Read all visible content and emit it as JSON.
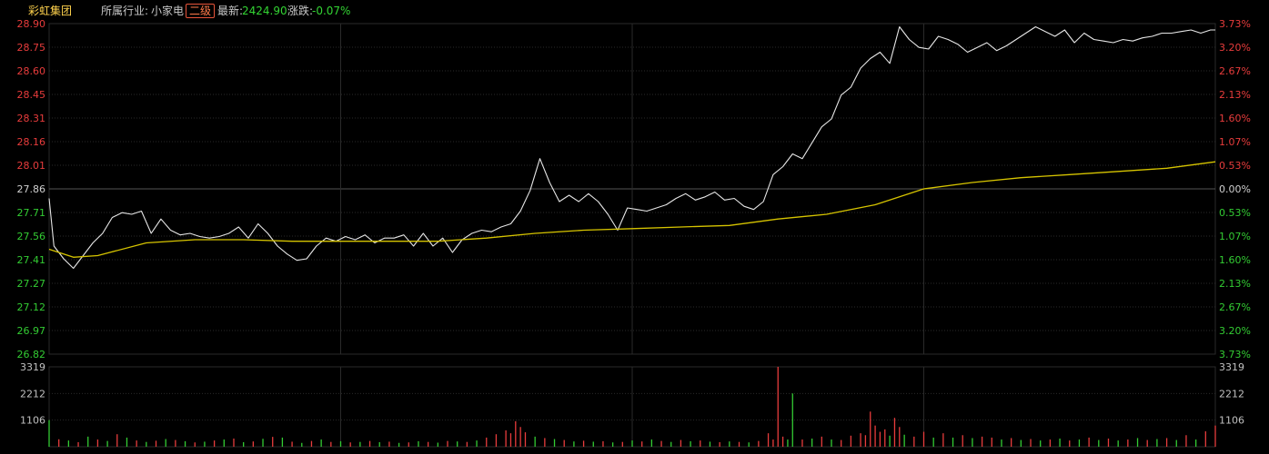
{
  "header": {
    "stock_name": "彩虹集团",
    "industry_label": "所属行业:",
    "industry_value": "小家电",
    "tag": "二级",
    "latest_label": "最新:",
    "latest_value": "2424.90",
    "change_label": "涨跌:",
    "change_value": "-0.07%"
  },
  "colors": {
    "background": "#000000",
    "price_line": "#e6e6e6",
    "avg_line": "#d6c400",
    "up": "#e83c3c",
    "down": "#33cc33",
    "grid": "#2a2a2a",
    "base_line": "#555555"
  },
  "chart_data": {
    "type": "line",
    "title": "",
    "price_axis": {
      "left_ticks": [
        "28.90",
        "28.75",
        "28.60",
        "28.45",
        "28.31",
        "28.16",
        "28.01",
        "27.86",
        "27.71",
        "27.56",
        "27.41",
        "27.27",
        "27.12",
        "26.97",
        "26.82"
      ],
      "right_ticks": [
        "3.73%",
        "3.20%",
        "2.67%",
        "2.13%",
        "1.60%",
        "1.07%",
        "0.53%",
        "0.00%",
        "0.53%",
        "1.07%",
        "1.60%",
        "2.13%",
        "2.67%",
        "3.20%",
        "3.73%"
      ],
      "ylim": [
        26.82,
        28.9
      ],
      "base": 27.86
    },
    "volume_axis": {
      "left_ticks": [
        "3319",
        "2212",
        "1106"
      ],
      "right_ticks": [
        "3319",
        "2212",
        "1106"
      ],
      "ylim": [
        0,
        3319
      ]
    },
    "x_range": [
      0,
      240
    ],
    "series": [
      {
        "key": "price",
        "x": [
          0,
          1,
          3,
          5,
          7,
          9,
          11,
          13,
          15,
          17,
          19,
          21,
          23,
          25,
          27,
          29,
          31,
          33,
          35,
          37,
          39,
          41,
          43,
          45,
          47,
          49,
          51,
          53,
          55,
          57,
          59,
          61,
          63,
          65,
          67,
          69,
          71,
          73,
          75,
          77,
          79,
          81,
          83,
          85,
          87,
          89,
          91,
          93,
          95,
          97,
          99,
          101,
          103,
          105,
          107,
          109,
          111,
          113,
          115,
          117,
          119,
          121,
          123,
          125,
          127,
          129,
          131,
          133,
          135,
          137,
          139,
          141,
          143,
          145,
          147,
          149,
          151,
          153,
          155,
          157,
          159,
          161,
          163,
          165,
          167,
          169,
          171,
          173,
          175,
          177,
          179,
          181,
          183,
          185,
          187,
          189,
          191,
          193,
          195,
          197,
          199,
          201,
          203,
          205,
          207,
          209,
          211,
          213,
          215,
          217,
          219,
          221,
          223,
          225,
          227,
          229,
          231,
          233,
          235,
          237,
          239,
          240
        ],
        "values": [
          27.8,
          27.5,
          27.42,
          27.36,
          27.44,
          27.52,
          27.58,
          27.68,
          27.71,
          27.7,
          27.72,
          27.58,
          27.67,
          27.6,
          27.57,
          27.58,
          27.56,
          27.55,
          27.56,
          27.58,
          27.62,
          27.55,
          27.64,
          27.58,
          27.5,
          27.45,
          27.41,
          27.42,
          27.5,
          27.55,
          27.53,
          27.56,
          27.54,
          27.57,
          27.52,
          27.55,
          27.55,
          27.57,
          27.5,
          27.58,
          27.5,
          27.55,
          27.46,
          27.54,
          27.58,
          27.6,
          27.59,
          27.62,
          27.64,
          27.72,
          27.85,
          28.05,
          27.9,
          27.78,
          27.82,
          27.78,
          27.83,
          27.78,
          27.7,
          27.6,
          27.74,
          27.73,
          27.72,
          27.74,
          27.76,
          27.8,
          27.83,
          27.79,
          27.81,
          27.84,
          27.79,
          27.8,
          27.75,
          27.73,
          27.78,
          27.95,
          28.0,
          28.08,
          28.05,
          28.15,
          28.25,
          28.3,
          28.45,
          28.5,
          28.62,
          28.68,
          28.72,
          28.65,
          28.88,
          28.8,
          28.75,
          28.74,
          28.82,
          28.8,
          28.77,
          28.72,
          28.75,
          28.78,
          28.73,
          28.76,
          28.8,
          28.84,
          28.88,
          28.85,
          28.82,
          28.86,
          28.78,
          28.84,
          28.8,
          28.79,
          28.78,
          28.8,
          28.79,
          28.81,
          28.82,
          28.84,
          28.84,
          28.85,
          28.86,
          28.84,
          28.86,
          28.86
        ],
        "color": "#e6e6e6"
      },
      {
        "key": "average",
        "x": [
          0,
          1,
          3,
          5,
          10,
          20,
          30,
          40,
          50,
          60,
          70,
          80,
          90,
          100,
          110,
          120,
          130,
          140,
          150,
          160,
          170,
          180,
          190,
          200,
          210,
          220,
          230,
          240
        ],
        "values": [
          27.48,
          27.47,
          27.45,
          27.43,
          27.44,
          27.52,
          27.54,
          27.54,
          27.53,
          27.53,
          27.53,
          27.53,
          27.55,
          27.58,
          27.6,
          27.61,
          27.62,
          27.63,
          27.67,
          27.7,
          27.76,
          27.86,
          27.9,
          27.93,
          27.95,
          27.97,
          27.99,
          28.03
        ],
        "color": "#d6c400"
      }
    ],
    "volume": [
      [
        0,
        1106,
        "down"
      ],
      [
        2,
        310,
        "up"
      ],
      [
        4,
        260,
        "down"
      ],
      [
        6,
        190,
        "up"
      ],
      [
        8,
        420,
        "down"
      ],
      [
        10,
        300,
        "up"
      ],
      [
        12,
        240,
        "down"
      ],
      [
        14,
        520,
        "up"
      ],
      [
        16,
        380,
        "down"
      ],
      [
        18,
        260,
        "up"
      ],
      [
        20,
        200,
        "down"
      ],
      [
        22,
        250,
        "up"
      ],
      [
        24,
        320,
        "down"
      ],
      [
        26,
        280,
        "up"
      ],
      [
        28,
        230,
        "down"
      ],
      [
        30,
        180,
        "up"
      ],
      [
        32,
        210,
        "down"
      ],
      [
        34,
        260,
        "up"
      ],
      [
        36,
        300,
        "down"
      ],
      [
        38,
        340,
        "up"
      ],
      [
        40,
        190,
        "down"
      ],
      [
        42,
        220,
        "up"
      ],
      [
        44,
        330,
        "down"
      ],
      [
        46,
        410,
        "up"
      ],
      [
        48,
        380,
        "down"
      ],
      [
        50,
        210,
        "up"
      ],
      [
        52,
        160,
        "down"
      ],
      [
        54,
        240,
        "up"
      ],
      [
        56,
        300,
        "down"
      ],
      [
        58,
        200,
        "up"
      ],
      [
        60,
        230,
        "down"
      ],
      [
        62,
        180,
        "up"
      ],
      [
        64,
        200,
        "down"
      ],
      [
        66,
        240,
        "up"
      ],
      [
        68,
        190,
        "down"
      ],
      [
        70,
        210,
        "up"
      ],
      [
        72,
        160,
        "down"
      ],
      [
        74,
        180,
        "up"
      ],
      [
        76,
        230,
        "down"
      ],
      [
        78,
        200,
        "up"
      ],
      [
        80,
        170,
        "down"
      ],
      [
        82,
        240,
        "up"
      ],
      [
        84,
        220,
        "down"
      ],
      [
        86,
        200,
        "up"
      ],
      [
        88,
        260,
        "down"
      ],
      [
        90,
        380,
        "up"
      ],
      [
        92,
        520,
        "up"
      ],
      [
        94,
        680,
        "up"
      ],
      [
        95,
        560,
        "up"
      ],
      [
        96,
        1060,
        "up"
      ],
      [
        97,
        820,
        "up"
      ],
      [
        98,
        600,
        "up"
      ],
      [
        100,
        420,
        "down"
      ],
      [
        102,
        360,
        "up"
      ],
      [
        104,
        320,
        "down"
      ],
      [
        106,
        280,
        "up"
      ],
      [
        108,
        220,
        "down"
      ],
      [
        110,
        250,
        "up"
      ],
      [
        112,
        210,
        "down"
      ],
      [
        114,
        230,
        "up"
      ],
      [
        116,
        180,
        "down"
      ],
      [
        118,
        200,
        "up"
      ],
      [
        120,
        260,
        "down"
      ],
      [
        122,
        220,
        "up"
      ],
      [
        124,
        300,
        "down"
      ],
      [
        126,
        240,
        "up"
      ],
      [
        128,
        200,
        "down"
      ],
      [
        130,
        280,
        "up"
      ],
      [
        132,
        230,
        "down"
      ],
      [
        134,
        260,
        "up"
      ],
      [
        136,
        210,
        "down"
      ],
      [
        138,
        190,
        "up"
      ],
      [
        140,
        220,
        "down"
      ],
      [
        142,
        200,
        "up"
      ],
      [
        144,
        180,
        "down"
      ],
      [
        146,
        240,
        "up"
      ],
      [
        148,
        560,
        "up"
      ],
      [
        149,
        300,
        "up"
      ],
      [
        150,
        3319,
        "up"
      ],
      [
        151,
        420,
        "up"
      ],
      [
        152,
        300,
        "down"
      ],
      [
        153,
        2212,
        "down"
      ],
      [
        155,
        300,
        "up"
      ],
      [
        157,
        340,
        "down"
      ],
      [
        159,
        420,
        "up"
      ],
      [
        161,
        300,
        "down"
      ],
      [
        163,
        280,
        "up"
      ],
      [
        165,
        460,
        "up"
      ],
      [
        167,
        560,
        "up"
      ],
      [
        168,
        480,
        "up"
      ],
      [
        169,
        1460,
        "up"
      ],
      [
        170,
        880,
        "up"
      ],
      [
        171,
        620,
        "up"
      ],
      [
        172,
        720,
        "up"
      ],
      [
        173,
        460,
        "down"
      ],
      [
        174,
        1200,
        "up"
      ],
      [
        175,
        820,
        "up"
      ],
      [
        176,
        500,
        "down"
      ],
      [
        178,
        420,
        "up"
      ],
      [
        180,
        620,
        "up"
      ],
      [
        182,
        380,
        "down"
      ],
      [
        184,
        560,
        "up"
      ],
      [
        186,
        380,
        "down"
      ],
      [
        188,
        480,
        "up"
      ],
      [
        190,
        360,
        "down"
      ],
      [
        192,
        420,
        "up"
      ],
      [
        194,
        380,
        "up"
      ],
      [
        196,
        300,
        "down"
      ],
      [
        198,
        360,
        "up"
      ],
      [
        200,
        280,
        "down"
      ],
      [
        202,
        320,
        "up"
      ],
      [
        204,
        260,
        "down"
      ],
      [
        206,
        300,
        "up"
      ],
      [
        208,
        340,
        "down"
      ],
      [
        210,
        260,
        "up"
      ],
      [
        212,
        300,
        "down"
      ],
      [
        214,
        380,
        "up"
      ],
      [
        216,
        280,
        "down"
      ],
      [
        218,
        340,
        "up"
      ],
      [
        220,
        260,
        "down"
      ],
      [
        222,
        300,
        "up"
      ],
      [
        224,
        360,
        "down"
      ],
      [
        226,
        280,
        "up"
      ],
      [
        228,
        320,
        "down"
      ],
      [
        230,
        360,
        "up"
      ],
      [
        232,
        280,
        "down"
      ],
      [
        234,
        480,
        "up"
      ],
      [
        236,
        300,
        "down"
      ],
      [
        238,
        640,
        "up"
      ],
      [
        240,
        880,
        "up"
      ]
    ]
  }
}
